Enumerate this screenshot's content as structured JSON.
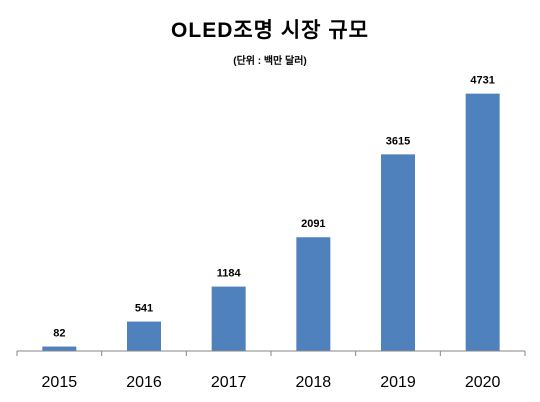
{
  "chart_data": {
    "type": "bar",
    "title": "OLED조명 시장 규모",
    "subtitle": "(단위 : 백만 달러)",
    "categories": [
      "2015",
      "2016",
      "2017",
      "2018",
      "2019",
      "2020"
    ],
    "values": [
      82,
      541,
      1184,
      2091,
      3615,
      4731
    ],
    "ylim": [
      0,
      5000
    ],
    "grid": false,
    "legend": "none",
    "data_labels": "above-bars",
    "bar_color": "#4f81bd",
    "axis_color": "#868686"
  }
}
